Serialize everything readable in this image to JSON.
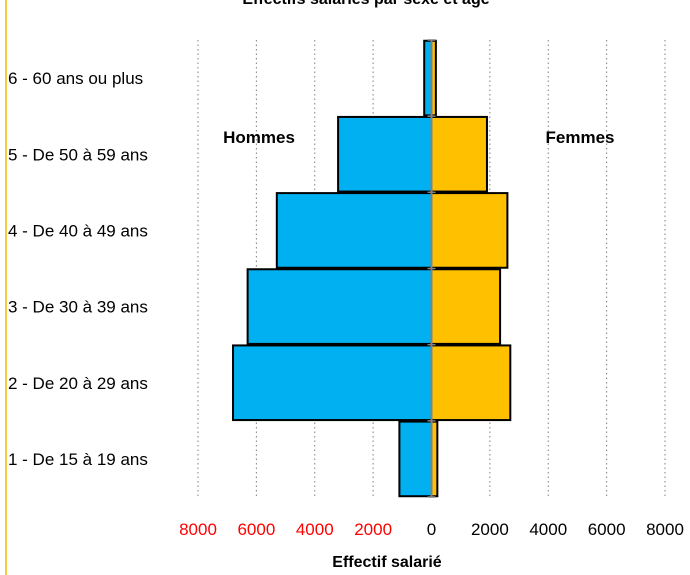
{
  "chart_data": {
    "type": "bar",
    "orientation": "horizontal-population-pyramid",
    "title": "Effectifs salariés par sexe et âge",
    "xlabel": "Effectif salarié",
    "categories": [
      "1 - De 15 à 19 ans",
      "2 - De 20 à 29 ans",
      "3 - De 30 à 39 ans",
      "4 - De 40 à 49 ans",
      "5 - De 50 à 59 ans",
      "6 - 60 ans ou plus"
    ],
    "series": [
      {
        "name": "Hommes",
        "values": [
          1100,
          6800,
          6300,
          5300,
          3200,
          250
        ],
        "color": "#00B0F0",
        "side": "left"
      },
      {
        "name": "Femmes",
        "values": [
          200,
          2700,
          2350,
          2600,
          1900,
          150
        ],
        "color": "#FFC000",
        "side": "right"
      }
    ],
    "xlim": [
      -8000,
      8000
    ],
    "xticks": [
      -8000,
      -6000,
      -4000,
      -2000,
      0,
      2000,
      4000,
      6000,
      8000
    ],
    "xtick_labels": [
      "8000",
      "6000",
      "4000",
      "2000",
      "0",
      "2000",
      "4000",
      "6000",
      "8000"
    ],
    "negative_tick_color": "#FF0000",
    "positive_tick_color": "#000000",
    "grid": "vertical-dotted",
    "legend": "inline-labels"
  }
}
